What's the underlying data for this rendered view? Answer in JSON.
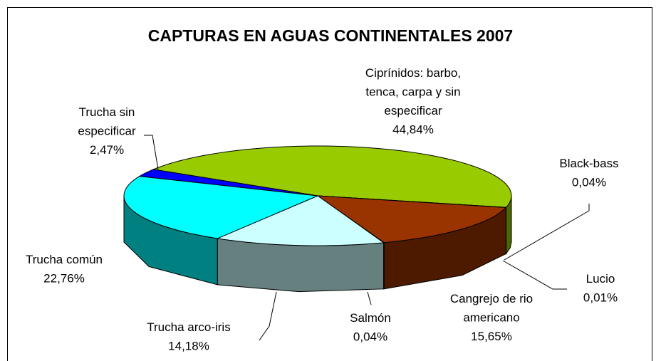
{
  "chart_data": {
    "type": "pie3d",
    "title": "CAPTURAS EN AGUAS CONTINENTALES 2007",
    "categories": [
      "Ciprínidos: barbo, tenca, carpa y sin especificar",
      "Black-bass",
      "Lucio",
      "Cangrejo de rio americano",
      "Salmón",
      "Trucha arco-iris",
      "Trucha común",
      "Trucha sin especificar"
    ],
    "values": [
      44.84,
      0.04,
      0.01,
      15.65,
      0.04,
      14.18,
      22.76,
      2.47
    ],
    "value_labels": [
      "44,84%",
      "0,04%",
      "0,01%",
      "15,65%",
      "0,04%",
      "14,18%",
      "22,76%",
      "2,47%"
    ],
    "colors": [
      "#99cc00",
      "#333399",
      "#ff0000",
      "#993300",
      "#ff9966",
      "#ccffff",
      "#00ffff",
      "#0000ff"
    ]
  }
}
